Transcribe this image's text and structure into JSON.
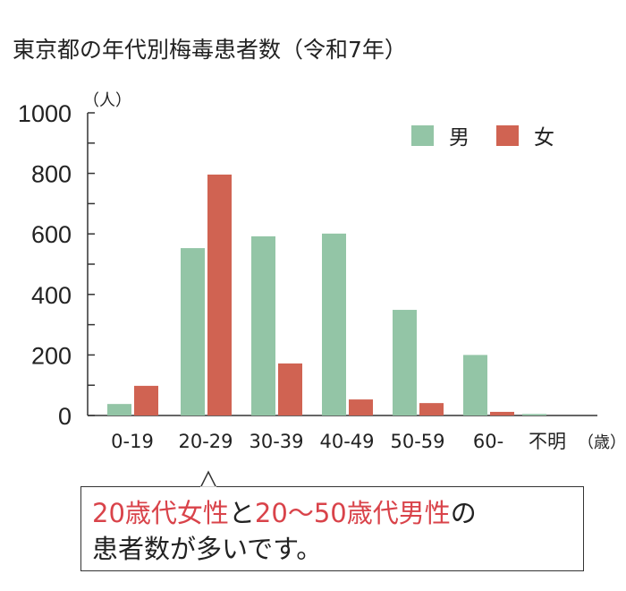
{
  "title": "東京都の年代別梅毒患者数（令和7年）",
  "chart_data": {
    "type": "bar",
    "title": "東京都の年代別梅毒患者数（令和7年）",
    "ylabel": "（人）",
    "xlabel": "（歳）",
    "ylim": [
      0,
      1000
    ],
    "yticks": [
      "0",
      "200",
      "400",
      "600",
      "800",
      "1000"
    ],
    "categories": [
      "0-19",
      "20-29",
      "30-39",
      "40-49",
      "50-59",
      "60-",
      "不明"
    ],
    "series": [
      {
        "name": "男",
        "color": "#93c5a6",
        "values": [
          38,
          553,
          592,
          601,
          349,
          200,
          5
        ]
      },
      {
        "name": "女",
        "color": "#d06352",
        "values": [
          98,
          796,
          172,
          53,
          41,
          12,
          0
        ]
      }
    ],
    "legend": "top-right",
    "grid": false
  },
  "callout": {
    "parts": [
      {
        "text": "20歳代女性",
        "red": true
      },
      {
        "text": "と",
        "red": false
      },
      {
        "text": "20～50歳代男性",
        "red": true
      },
      {
        "text": "の",
        "red": false
      }
    ],
    "line2": "患者数が多いです。"
  }
}
